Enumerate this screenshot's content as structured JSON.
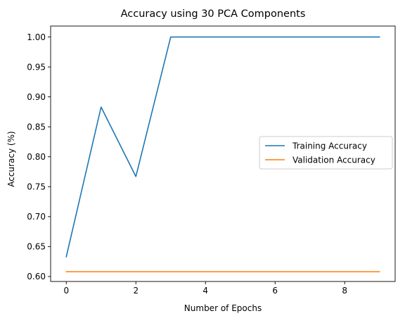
{
  "chart_data": {
    "type": "line",
    "title": "Accuracy using 30 PCA Components",
    "xlabel": "Number of Epochs",
    "ylabel": "Accuracy (%)",
    "xlim": [
      -0.45,
      9.45
    ],
    "ylim": [
      0.5917,
      1.0183
    ],
    "x_ticks": [
      0,
      2,
      4,
      6,
      8
    ],
    "y_ticks": [
      0.6,
      0.65,
      0.7,
      0.75,
      0.8,
      0.85,
      0.9,
      0.95,
      1.0
    ],
    "x_tick_labels": [
      "0",
      "2",
      "4",
      "6",
      "8"
    ],
    "y_tick_labels": [
      "0.60",
      "0.65",
      "0.70",
      "0.75",
      "0.80",
      "0.85",
      "0.90",
      "0.95",
      "1.00"
    ],
    "x": [
      0,
      1,
      2,
      3,
      4,
      5,
      6,
      7,
      8,
      9
    ],
    "series": [
      {
        "name": "Training Accuracy",
        "color": "#1f77b4",
        "values": [
          0.633,
          0.883,
          0.767,
          1.0,
          1.0,
          1.0,
          1.0,
          1.0,
          1.0,
          1.0
        ]
      },
      {
        "name": "Validation Accuracy",
        "color": "#ff7f0e",
        "values": [
          0.608,
          0.608,
          0.608,
          0.608,
          0.608,
          0.608,
          0.608,
          0.608,
          0.608,
          0.608
        ]
      }
    ],
    "grid": false,
    "legend_position": "center-right"
  }
}
